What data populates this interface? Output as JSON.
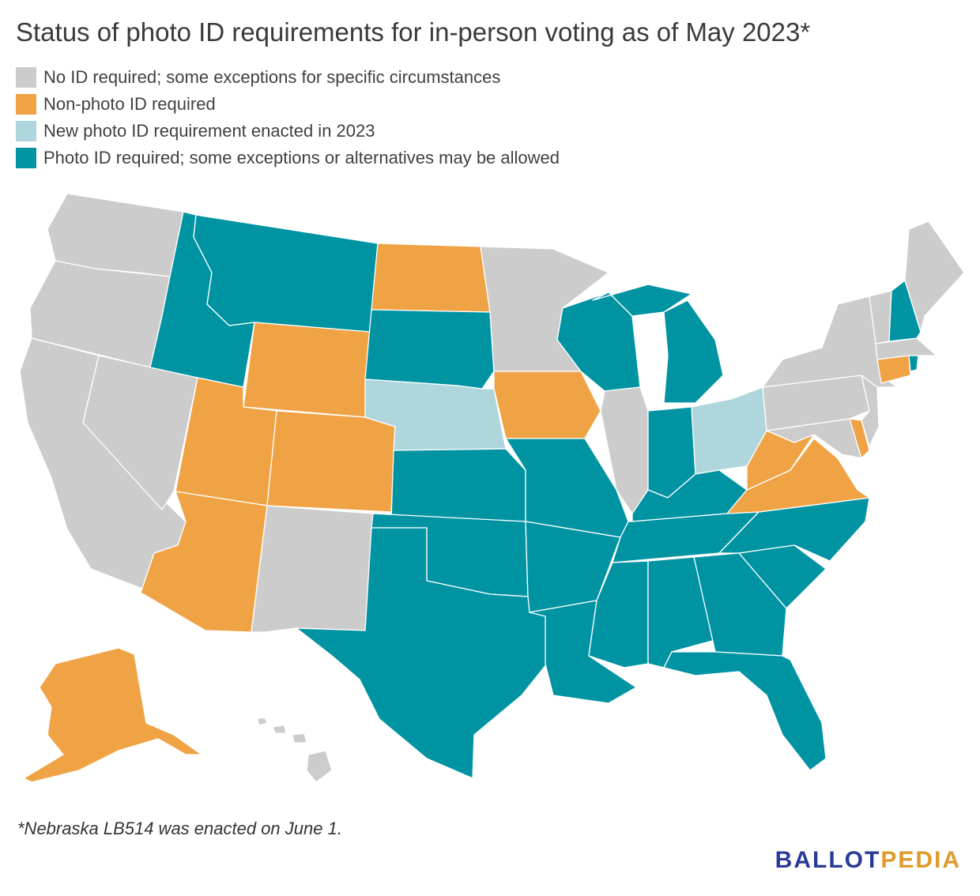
{
  "title": "Status of photo ID requirements for in-person voting as of May 2023*",
  "colors": {
    "none": "#cccccc",
    "nonphoto": "#f0a345",
    "new2023": "#aed6dc",
    "photo": "#0094a3"
  },
  "legend": [
    {
      "key": "none",
      "label": "No ID required; some exceptions for specific circumstances"
    },
    {
      "key": "nonphoto",
      "label": "Non-photo ID required"
    },
    {
      "key": "new2023",
      "label": "New photo ID requirement enacted in 2023"
    },
    {
      "key": "photo",
      "label": "Photo ID required; some exceptions or alternatives may be allowed"
    }
  ],
  "states": {
    "WA": "none",
    "OR": "none",
    "CA": "none",
    "NV": "none",
    "ID": "photo",
    "MT": "photo",
    "WY": "nonphoto",
    "UT": "nonphoto",
    "AZ": "nonphoto",
    "CO": "nonphoto",
    "NM": "none",
    "ND": "nonphoto",
    "SD": "photo",
    "NE": "new2023",
    "KS": "photo",
    "OK": "photo",
    "TX": "photo",
    "MN": "none",
    "IA": "nonphoto",
    "MO": "photo",
    "AR": "photo",
    "LA": "photo",
    "WI": "photo",
    "IL": "none",
    "MI": "photo",
    "IN": "photo",
    "OH": "new2023",
    "KY": "photo",
    "TN": "photo",
    "MS": "photo",
    "AL": "photo",
    "GA": "photo",
    "FL": "photo",
    "SC": "photo",
    "NC": "photo",
    "VA": "nonphoto",
    "WV": "nonphoto",
    "MD": "none",
    "DE": "nonphoto",
    "PA": "none",
    "NJ": "none",
    "NY": "none",
    "CT": "nonphoto",
    "RI": "photo",
    "MA": "none",
    "VT": "none",
    "NH": "photo",
    "ME": "none",
    "AK": "nonphoto",
    "HI": "none"
  },
  "footnote": "*Nebraska LB514 was enacted on June 1.",
  "brand": {
    "part1": "BALLOT",
    "part2": "PEDIA"
  }
}
